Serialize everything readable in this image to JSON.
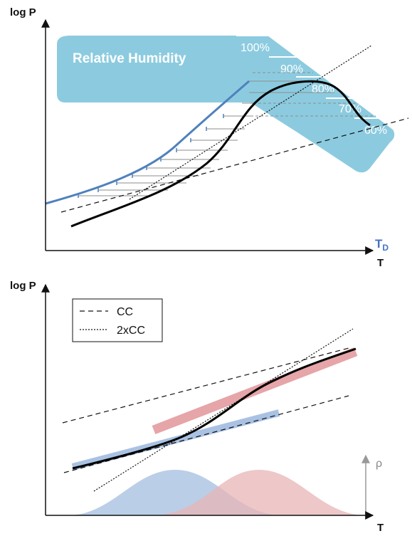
{
  "top_panel": {
    "y_axis_label": "log P",
    "x_axis_label": "T",
    "td_label_main": "T",
    "td_label_sub": "D",
    "humidity_title": "Relative Humidity",
    "humidity_levels": [
      "100%",
      "90%",
      "80%",
      "70%",
      "60%"
    ]
  },
  "bottom_panel": {
    "y_axis_label": "log P",
    "x_axis_label": "T",
    "rho_label": "ρ",
    "legend": [
      {
        "label": "CC",
        "style": "dashed"
      },
      {
        "label": "2xCC",
        "style": "dotted"
      }
    ]
  },
  "colors": {
    "humidity_band": "#8ccbdf",
    "dewpoint_curve": "#4f81bd",
    "main_curve": "#000000",
    "red_band": "#e6a5a8",
    "blue_band": "#a9c2e3",
    "red_dist": "#e8b4b6",
    "blue_dist": "#b3c9e6",
    "rho_axis": "#999999"
  }
}
